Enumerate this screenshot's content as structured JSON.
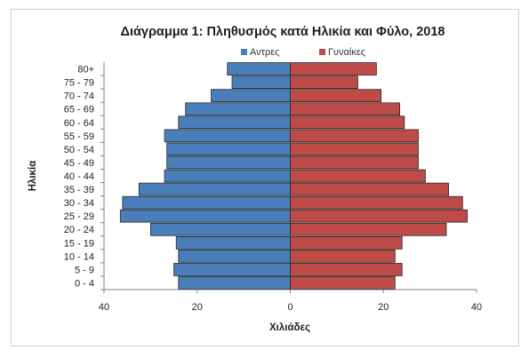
{
  "chart_data": {
    "type": "bar",
    "orientation": "horizontal",
    "layout": "population-pyramid",
    "title": "Διάγραμμα 1: Πληθυσμός κατά Ηλικία και Φύλο, 2018",
    "xlabel": "Χιλιάδες",
    "ylabel": "Ηλικία",
    "xlim": [
      -40,
      40
    ],
    "xticks": [
      "40",
      "20",
      "0",
      "20",
      "40"
    ],
    "xtick_values": [
      -40,
      -20,
      0,
      20,
      40
    ],
    "legend_position": "top",
    "categories": [
      "0 - 4",
      "5 - 9",
      "10 - 14",
      "15 - 19",
      "20 - 24",
      "25 - 29",
      "30 - 34",
      "35 - 39",
      "40 - 44",
      "45 - 49",
      "50 - 54",
      "55 - 59",
      "60 - 64",
      "65 - 69",
      "70 - 74",
      "75 - 79",
      "80+"
    ],
    "series": [
      {
        "name": "Αντρες",
        "color": "#4a7ebb",
        "side": "left",
        "values": [
          24.0,
          25.0,
          24.0,
          24.5,
          30.0,
          36.5,
          36.0,
          32.5,
          27.0,
          26.5,
          26.5,
          27.0,
          24.0,
          22.5,
          17.0,
          12.5,
          13.5
        ]
      },
      {
        "name": "Γυναίκες",
        "color": "#be4b48",
        "side": "right",
        "values": [
          22.5,
          24.0,
          22.5,
          24.0,
          33.5,
          38.0,
          37.0,
          34.0,
          29.0,
          27.5,
          27.5,
          27.5,
          24.5,
          23.5,
          19.5,
          14.5,
          18.5
        ]
      }
    ],
    "grid": false
  }
}
